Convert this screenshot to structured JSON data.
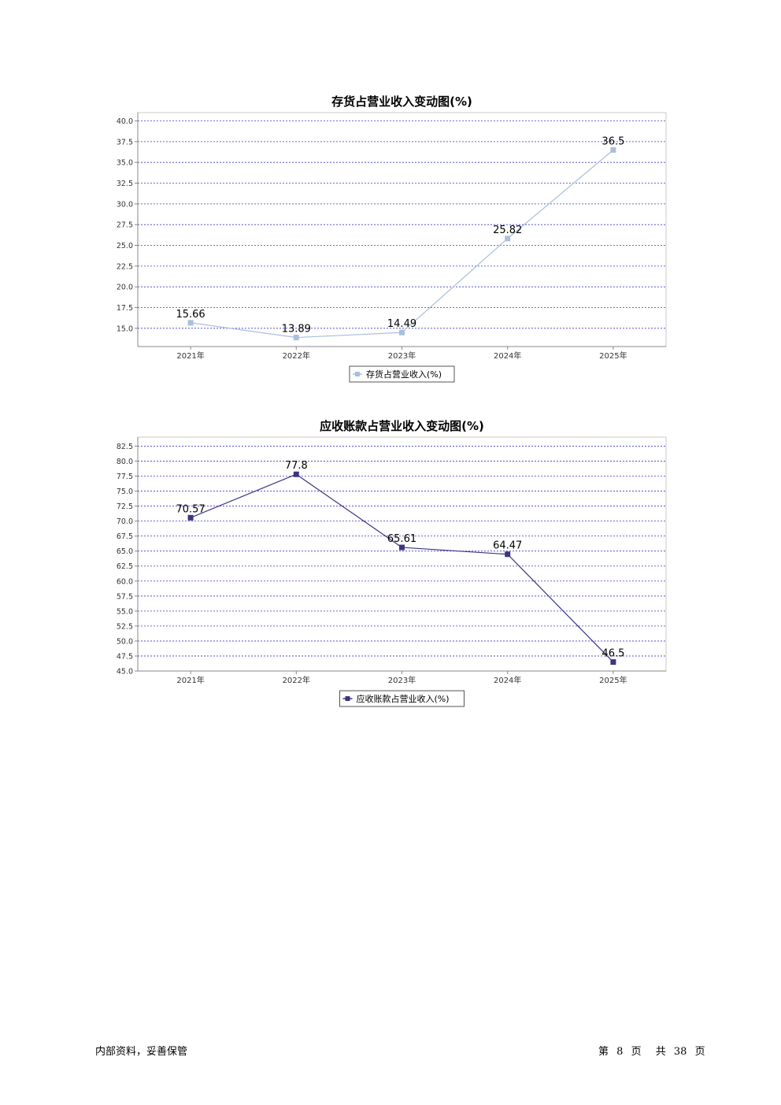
{
  "chart_data": [
    {
      "type": "line",
      "title": "存货占营业收入变动图(%)",
      "categories": [
        "2021年",
        "2022年",
        "2023年",
        "2024年",
        "2025年"
      ],
      "series": [
        {
          "name": "存货占营业收入(%)",
          "values": [
            15.66,
            13.89,
            14.49,
            25.82,
            36.5
          ],
          "color": "#a9bfdc"
        }
      ],
      "data_labels": [
        "15.66",
        "13.89",
        "14.49",
        "25.82",
        "36.5"
      ],
      "ylim": [
        12.8,
        41.0
      ],
      "yticks": [
        "15.0",
        "17.5",
        "20.0",
        "22.5",
        "25.0",
        "27.5",
        "30.0",
        "32.5",
        "35.0",
        "37.5",
        "40.0"
      ],
      "grid": true,
      "legend": "bottom-center"
    },
    {
      "type": "line",
      "title": "应收账款占营业收入变动图(%)",
      "categories": [
        "2021年",
        "2022年",
        "2023年",
        "2024年",
        "2025年"
      ],
      "series": [
        {
          "name": "应收账款占营业收入(%)",
          "values": [
            70.57,
            77.8,
            65.61,
            64.47,
            46.5
          ],
          "color": "#3d3580"
        }
      ],
      "data_labels": [
        "70.57",
        "77.8",
        "65.61",
        "64.47",
        "46.5"
      ],
      "ylim": [
        45.0,
        84.0
      ],
      "yticks": [
        "45.0",
        "47.5",
        "50.0",
        "52.5",
        "55.0",
        "57.5",
        "60.0",
        "62.5",
        "65.0",
        "67.5",
        "70.0",
        "72.5",
        "75.0",
        "77.5",
        "80.0",
        "82.5"
      ],
      "grid": true,
      "legend": "bottom-center"
    }
  ],
  "footer": {
    "left": "内部资料，妥善保管",
    "page_prefix": "第",
    "page_number": "8",
    "page_suffix": "页",
    "total_prefix": "共",
    "total_pages": "38",
    "total_suffix": "页"
  }
}
